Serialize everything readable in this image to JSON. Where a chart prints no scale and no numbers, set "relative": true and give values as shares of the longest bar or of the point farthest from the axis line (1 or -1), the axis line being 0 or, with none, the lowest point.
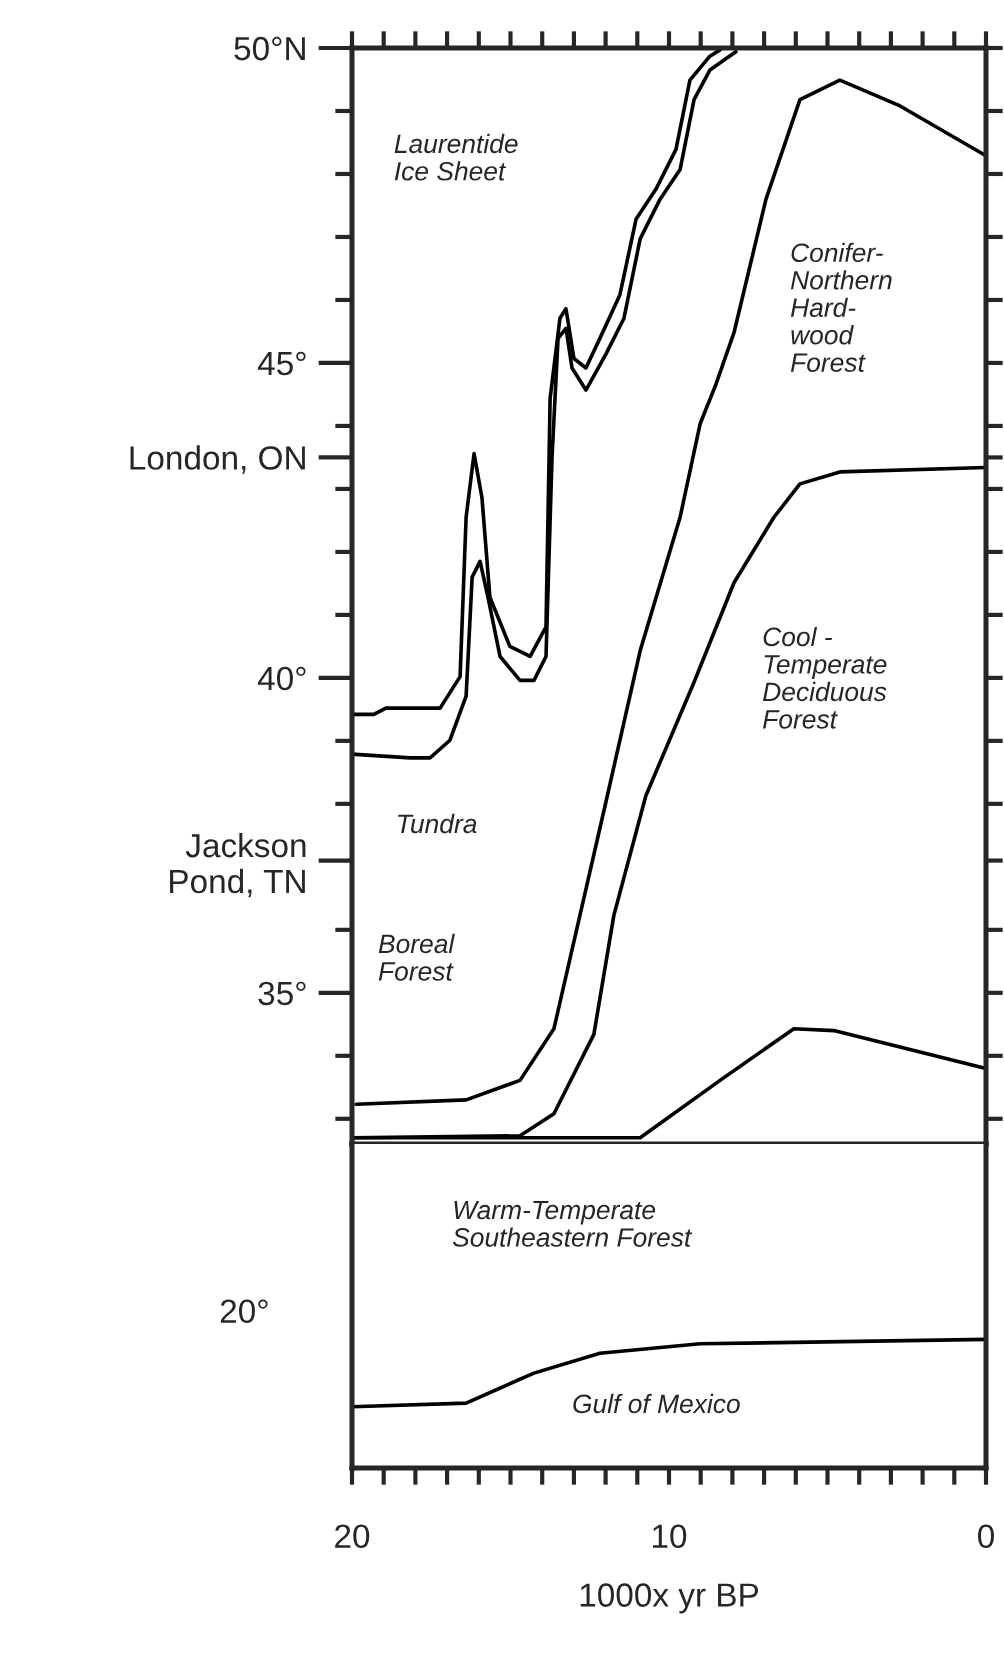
{
  "chart_data": [
    {
      "type": "line",
      "xlim": [
        20,
        0
      ],
      "ylim": [
        32.6,
        50
      ],
      "xticks": [
        {
          "value": 20,
          "label": null
        },
        {
          "value": 19,
          "label": null
        },
        {
          "value": 18,
          "label": null
        },
        {
          "value": 17,
          "label": null
        },
        {
          "value": 16,
          "label": null
        },
        {
          "value": 15,
          "label": null
        },
        {
          "value": 14,
          "label": null
        },
        {
          "value": 13,
          "label": null
        },
        {
          "value": 12,
          "label": null
        },
        {
          "value": 11,
          "label": null
        },
        {
          "value": 10,
          "label": null
        },
        {
          "value": 9,
          "label": null
        },
        {
          "value": 8,
          "label": null
        },
        {
          "value": 7,
          "label": null
        },
        {
          "value": 6,
          "label": null
        },
        {
          "value": 5,
          "label": null
        },
        {
          "value": 4,
          "label": null
        },
        {
          "value": 3,
          "label": null
        },
        {
          "value": 2,
          "label": null
        },
        {
          "value": 1,
          "label": null
        },
        {
          "value": 0,
          "label": null
        }
      ],
      "yticks": [
        {
          "value": 50,
          "label": "50°N"
        },
        {
          "value": 49,
          "label": null
        },
        {
          "value": 48,
          "label": null
        },
        {
          "value": 47,
          "label": null
        },
        {
          "value": 46,
          "label": null
        },
        {
          "value": 45,
          "label": "45°"
        },
        {
          "value": 44,
          "label": null
        },
        {
          "value": 43.5,
          "label": "London, ON"
        },
        {
          "value": 43,
          "label": null
        },
        {
          "value": 42,
          "label": null
        },
        {
          "value": 41,
          "label": null
        },
        {
          "value": 40,
          "label": "40°"
        },
        {
          "value": 39,
          "label": null
        },
        {
          "value": 38,
          "label": null
        },
        {
          "value": 37.1,
          "label": "Jackson\nPond, TN"
        },
        {
          "value": 36,
          "label": null
        },
        {
          "value": 35,
          "label": "35°"
        },
        {
          "value": 34,
          "label": null
        },
        {
          "value": 33,
          "label": null
        }
      ],
      "tick_labels": "y",
      "marker": "none",
      "line_style": "solid",
      "series": [
        {
          "color": "#000000",
          "x": [
            20,
            19.31,
            18.93,
            17.22,
            16.59,
            16.4,
            16.15,
            15.9,
            15.65,
            15.02,
            14.38,
            13.88,
            13.75,
            13.44,
            13.25,
            13.0,
            12.62,
            12.18,
            11.55,
            11.04,
            10.41,
            9.78,
            9.34,
            8.71,
            8.39
          ],
          "values": [
            39.42,
            39.42,
            39.52,
            39.52,
            40.02,
            42.55,
            43.56,
            42.86,
            41.28,
            40.5,
            40.34,
            40.81,
            44.44,
            45.71,
            45.86,
            45.07,
            44.92,
            45.39,
            46.08,
            47.28,
            47.76,
            48.39,
            49.49,
            49.87,
            49.97
          ]
        },
        {
          "color": "#000000",
          "x": [
            20,
            18.17,
            17.54,
            16.91,
            16.4,
            16.21,
            15.96,
            15.71,
            15.33,
            14.7,
            14.26,
            13.88,
            13.69,
            13.5,
            13.25,
            13.06,
            12.62,
            11.99,
            11.42,
            10.91,
            10.28,
            9.65,
            9.21,
            8.71,
            7.89
          ],
          "values": [
            38.79,
            38.73,
            38.73,
            39.01,
            39.71,
            41.6,
            41.85,
            41.28,
            40.34,
            39.96,
            39.96,
            40.34,
            43.5,
            45.39,
            45.55,
            44.92,
            44.57,
            45.14,
            45.71,
            46.97,
            47.6,
            48.07,
            49.18,
            49.65,
            49.94
          ]
        },
        {
          "color": "#000000",
          "x": [
            19.87,
            16.4,
            14.7,
            13.63,
            12.81,
            11.99,
            10.91,
            9.65,
            9.02,
            8.52,
            7.95,
            6.94,
            5.87,
            4.61,
            2.71,
            0
          ],
          "values": [
            33.23,
            33.3,
            33.61,
            34.43,
            36.23,
            38.03,
            40.43,
            42.55,
            44.03,
            44.66,
            45.48,
            47.6,
            49.18,
            49.49,
            49.08,
            48.29
          ]
        },
        {
          "color": "#000000",
          "x": [
            20,
            14.7,
            13.63,
            12.37,
            11.74,
            10.73,
            9.21,
            7.95,
            6.69,
            5.87,
            4.61,
            0
          ],
          "values": [
            32.7,
            32.73,
            33.08,
            34.34,
            36.23,
            38.13,
            39.93,
            41.51,
            42.55,
            43.08,
            43.27,
            43.34
          ]
        },
        {
          "color": "#000000",
          "x": [
            20,
            10.91,
            8.39,
            6.06,
            4.8,
            0
          ],
          "values": [
            32.7,
            32.7,
            33.61,
            34.43,
            34.4,
            33.8
          ]
        }
      ],
      "annotations": [
        "Laurentide\nIce Sheet",
        "Conifer-\nNorthern\nHard-\nwood\nForest",
        "Cool -\nTemperate\nDeciduous\nForest",
        "Tundra",
        "Boreal\nForest"
      ]
    },
    {
      "type": "line",
      "xlim": [
        20,
        0
      ],
      "relative": true,
      "xlabel": "1000x yr BP",
      "xticks": [
        {
          "value": 20,
          "label": "20"
        },
        {
          "value": 19,
          "label": null
        },
        {
          "value": 18,
          "label": null
        },
        {
          "value": 17,
          "label": null
        },
        {
          "value": 16,
          "label": null
        },
        {
          "value": 15,
          "label": null
        },
        {
          "value": 14,
          "label": null
        },
        {
          "value": 13,
          "label": null
        },
        {
          "value": 12,
          "label": null
        },
        {
          "value": 11,
          "label": null
        },
        {
          "value": 10,
          "label": "10"
        },
        {
          "value": 9,
          "label": null
        },
        {
          "value": 8,
          "label": null
        },
        {
          "value": 7,
          "label": null
        },
        {
          "value": 6,
          "label": null
        },
        {
          "value": 5,
          "label": null
        },
        {
          "value": 4,
          "label": null
        },
        {
          "value": 3,
          "label": null
        },
        {
          "value": 2,
          "label": null
        },
        {
          "value": 1,
          "label": null
        },
        {
          "value": 0,
          "label": "0"
        }
      ],
      "marker": "none",
      "line_style": "solid",
      "series": [
        {
          "color": "#000000",
          "x": [
            20,
            16.4,
            14.26,
            12.18,
            9.02,
            0
          ],
          "values": [
            0.476,
            0.505,
            0.738,
            0.893,
            0.966,
            1.0
          ]
        }
      ],
      "annotations": [
        "Warm-Temperate\nSoutheastern Forest",
        "Gulf of Mexico",
        "20°"
      ]
    }
  ]
}
